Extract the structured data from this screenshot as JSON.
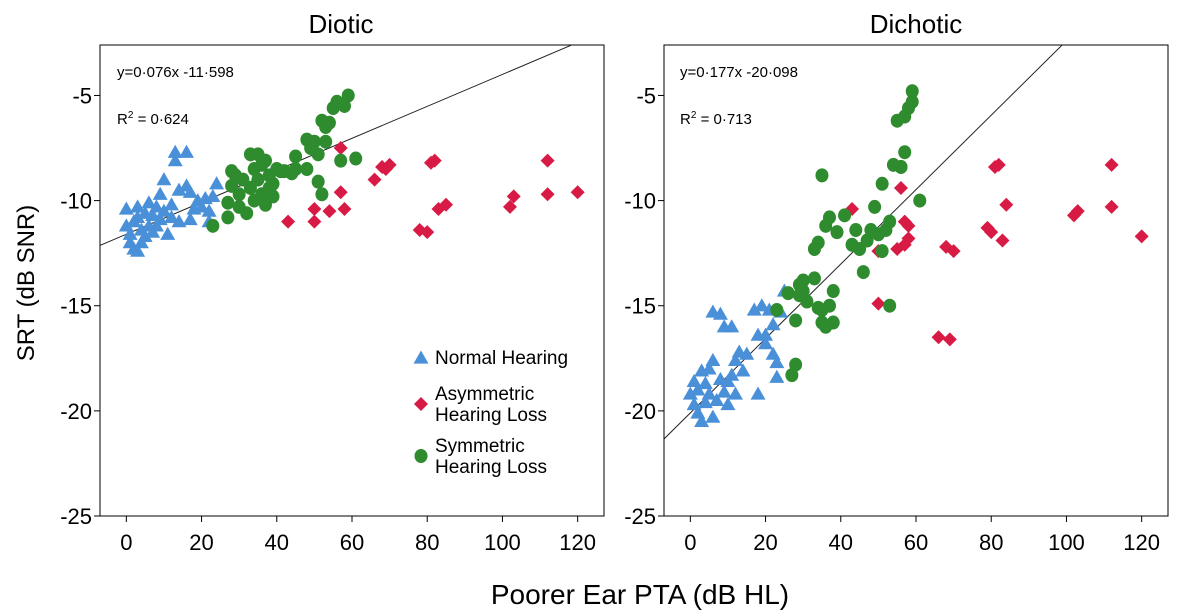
{
  "figure": {
    "ylabel": "SRT (dB SNR)",
    "xlabel": "Poorer Ear PTA (dB HL)"
  },
  "legend": [
    {
      "label_lines": [
        "Normal Hearing"
      ],
      "marker": "triangle",
      "color": "#4a90d9"
    },
    {
      "label_lines": [
        "Asymmetric",
        "Hearing Loss"
      ],
      "marker": "diamond",
      "color": "#d81b45"
    },
    {
      "label_lines": [
        "Symmetric",
        "Hearing Loss"
      ],
      "marker": "circle",
      "color": "#2e8b2e"
    }
  ],
  "chart_data": [
    {
      "type": "scatter",
      "title": "Diotic",
      "equation": "y=0·076x -11·598",
      "r2_prefix": "R",
      "r2_sup": "2",
      "r2_value": " = 0·624",
      "fit": {
        "slope": 0.076,
        "intercept": -11.598
      },
      "xlim": [
        -7,
        127
      ],
      "ylim": [
        -25,
        -2.6
      ],
      "xticks": [
        0,
        20,
        40,
        60,
        80,
        100,
        120
      ],
      "yticks": [
        -5,
        -10,
        -15,
        -20,
        -25
      ],
      "legend_position": "lower-right",
      "series": [
        {
          "name": "Normal Hearing",
          "marker": "triangle",
          "color": "#4a90d9",
          "points": [
            [
              0,
              -10.4
            ],
            [
              0,
              -11.2
            ],
            [
              1,
              -11.6
            ],
            [
              1,
              -12
            ],
            [
              2,
              -12.3
            ],
            [
              2,
              -11
            ],
            [
              3,
              -12.4
            ],
            [
              3,
              -10.8
            ],
            [
              3,
              -10.3
            ],
            [
              4,
              -11.4
            ],
            [
              4,
              -12
            ],
            [
              5,
              -11.7
            ],
            [
              5,
              -10.6
            ],
            [
              6,
              -11.2
            ],
            [
              6,
              -10.1
            ],
            [
              7,
              -11.5
            ],
            [
              7,
              -10.7
            ],
            [
              8,
              -10.3
            ],
            [
              8,
              -11.2
            ],
            [
              9,
              -9.7
            ],
            [
              9,
              -10.9
            ],
            [
              10,
              -9
            ],
            [
              10,
              -10.5
            ],
            [
              11,
              -11.6
            ],
            [
              12,
              -10.2
            ],
            [
              12,
              -10.8
            ],
            [
              13,
              -7.7
            ],
            [
              13,
              -8.1
            ],
            [
              14,
              -11
            ],
            [
              14,
              -9.5
            ],
            [
              16,
              -9.3
            ],
            [
              16,
              -7.7
            ],
            [
              17,
              -9.6
            ],
            [
              17,
              -10.9
            ],
            [
              18,
              -10.4
            ],
            [
              19,
              -10
            ],
            [
              20,
              -10.3
            ],
            [
              21,
              -9.9
            ],
            [
              22,
              -11
            ],
            [
              22,
              -10.5
            ],
            [
              23,
              -9.8
            ],
            [
              24,
              -9.2
            ]
          ]
        },
        {
          "name": "Asymmetric Hearing Loss",
          "marker": "diamond",
          "color": "#d81b45",
          "points": [
            [
              43,
              -11
            ],
            [
              50,
              -10.4
            ],
            [
              50,
              -11
            ],
            [
              54,
              -10.5
            ],
            [
              57,
              -7.5
            ],
            [
              57,
              -9.6
            ],
            [
              58,
              -10.4
            ],
            [
              66,
              -9
            ],
            [
              68,
              -8.4
            ],
            [
              69,
              -8.5
            ],
            [
              70,
              -8.3
            ],
            [
              78,
              -11.4
            ],
            [
              80,
              -11.5
            ],
            [
              81,
              -8.2
            ],
            [
              82,
              -8.1
            ],
            [
              83,
              -10.4
            ],
            [
              85,
              -10.2
            ],
            [
              102,
              -10.3
            ],
            [
              103,
              -9.8
            ],
            [
              112,
              -8.1
            ],
            [
              112,
              -9.7
            ],
            [
              120,
              -9.6
            ]
          ]
        },
        {
          "name": "Symmetric Hearing Loss",
          "marker": "circle",
          "color": "#2e8b2e",
          "points": [
            [
              23,
              -11.2
            ],
            [
              27,
              -10.1
            ],
            [
              27,
              -10.8
            ],
            [
              28,
              -8.6
            ],
            [
              28,
              -9.3
            ],
            [
              29,
              -8.8
            ],
            [
              30,
              -10.3
            ],
            [
              30,
              -9.7
            ],
            [
              31,
              -9
            ],
            [
              32,
              -10.6
            ],
            [
              33,
              -9.4
            ],
            [
              33,
              -7.8
            ],
            [
              34,
              -8.5
            ],
            [
              34,
              -10
            ],
            [
              35,
              -9
            ],
            [
              35,
              -7.8
            ],
            [
              36,
              -9.7
            ],
            [
              36,
              -8.3
            ],
            [
              37,
              -10.2
            ],
            [
              37,
              -8.1
            ],
            [
              38,
              -9.4
            ],
            [
              38,
              -8.8
            ],
            [
              39,
              -9.2
            ],
            [
              39,
              -9.8
            ],
            [
              40,
              -8.5
            ],
            [
              41,
              -8.6
            ],
            [
              42,
              -8.6
            ],
            [
              44,
              -8.7
            ],
            [
              45,
              -7.9
            ],
            [
              45,
              -8.5
            ],
            [
              48,
              -7.1
            ],
            [
              48,
              -8.5
            ],
            [
              49,
              -7.5
            ],
            [
              50,
              -7.2
            ],
            [
              51,
              -9.1
            ],
            [
              51,
              -7.8
            ],
            [
              52,
              -6.2
            ],
            [
              52,
              -9.7
            ],
            [
              53,
              -6.5
            ],
            [
              53,
              -7.2
            ],
            [
              54,
              -6.3
            ],
            [
              55,
              -5.6
            ],
            [
              56,
              -5.3
            ],
            [
              57,
              -8.1
            ],
            [
              58,
              -5.5
            ],
            [
              59,
              -5
            ],
            [
              61,
              -8
            ]
          ]
        }
      ]
    },
    {
      "type": "scatter",
      "title": "Dichotic",
      "equation": "y=0·177x -20·098",
      "r2_prefix": "R",
      "r2_sup": "2",
      "r2_value": " = 0·713",
      "fit": {
        "slope": 0.177,
        "intercept": -20.098
      },
      "xlim": [
        -7,
        127
      ],
      "ylim": [
        -25,
        -2.6
      ],
      "xticks": [
        0,
        20,
        40,
        60,
        80,
        100,
        120
      ],
      "yticks": [
        -5,
        -10,
        -15,
        -20,
        -25
      ],
      "series": [
        {
          "name": "Normal Hearing",
          "marker": "triangle",
          "color": "#4a90d9",
          "points": [
            [
              0,
              -19.2
            ],
            [
              1,
              -18.6
            ],
            [
              1,
              -19.7
            ],
            [
              2,
              -19
            ],
            [
              2,
              -20.1
            ],
            [
              3,
              -20.5
            ],
            [
              3,
              -18.1
            ],
            [
              4,
              -19.6
            ],
            [
              4,
              -18.7
            ],
            [
              5,
              -18
            ],
            [
              5,
              -19.2
            ],
            [
              6,
              -17.6
            ],
            [
              6,
              -20.3
            ],
            [
              6,
              -15.3
            ],
            [
              7,
              -19.5
            ],
            [
              8,
              -18.5
            ],
            [
              8,
              -15.4
            ],
            [
              9,
              -19.1
            ],
            [
              9,
              -16
            ],
            [
              10,
              -18.6
            ],
            [
              10,
              -19.7
            ],
            [
              11,
              -18.3
            ],
            [
              11,
              -16
            ],
            [
              12,
              -19.2
            ],
            [
              12,
              -17.6
            ],
            [
              13,
              -17.2
            ],
            [
              14,
              -18.1
            ],
            [
              15,
              -17.3
            ],
            [
              17,
              -15.2
            ],
            [
              18,
              -16.4
            ],
            [
              18,
              -19.2
            ],
            [
              19,
              -15
            ],
            [
              20,
              -16.4
            ],
            [
              20,
              -16.8
            ],
            [
              21,
              -15.2
            ],
            [
              22,
              -15.9
            ],
            [
              22,
              -17.3
            ],
            [
              23,
              -17.7
            ],
            [
              23,
              -18.4
            ],
            [
              24,
              -15.3
            ],
            [
              25,
              -14.3
            ]
          ]
        },
        {
          "name": "Asymmetric Hearing Loss",
          "marker": "diamond",
          "color": "#d81b45",
          "points": [
            [
              43,
              -10.4
            ],
            [
              50,
              -14.9
            ],
            [
              50,
              -12.4
            ],
            [
              55,
              -12.3
            ],
            [
              56,
              -9.4
            ],
            [
              57,
              -11
            ],
            [
              57,
              -12.1
            ],
            [
              58,
              -11.8
            ],
            [
              58,
              -11.2
            ],
            [
              66,
              -16.5
            ],
            [
              68,
              -12.2
            ],
            [
              69,
              -16.6
            ],
            [
              70,
              -12.4
            ],
            [
              79,
              -11.3
            ],
            [
              80,
              -11.5
            ],
            [
              81,
              -8.4
            ],
            [
              82,
              -8.3
            ],
            [
              83,
              -11.9
            ],
            [
              84,
              -10.2
            ],
            [
              102,
              -10.7
            ],
            [
              103,
              -10.5
            ],
            [
              112,
              -8.3
            ],
            [
              112,
              -10.3
            ],
            [
              120,
              -11.7
            ]
          ]
        },
        {
          "name": "Symmetric Hearing Loss",
          "marker": "circle",
          "color": "#2e8b2e",
          "points": [
            [
              23,
              -15.2
            ],
            [
              26,
              -14.4
            ],
            [
              27,
              -18.3
            ],
            [
              28,
              -15.7
            ],
            [
              28,
              -17.8
            ],
            [
              29,
              -14.5
            ],
            [
              29,
              -14
            ],
            [
              30,
              -13.8
            ],
            [
              30,
              -14.3
            ],
            [
              31,
              -14.8
            ],
            [
              33,
              -12.3
            ],
            [
              33,
              -13.7
            ],
            [
              34,
              -15.1
            ],
            [
              34,
              -12
            ],
            [
              35,
              -8.8
            ],
            [
              35,
              -15.8
            ],
            [
              35,
              -15.2
            ],
            [
              36,
              -11.2
            ],
            [
              36,
              -16
            ],
            [
              37,
              -10.8
            ],
            [
              37,
              -15
            ],
            [
              38,
              -15.8
            ],
            [
              38,
              -14.3
            ],
            [
              39,
              -11.5
            ],
            [
              41,
              -10.7
            ],
            [
              43,
              -12.1
            ],
            [
              44,
              -11.4
            ],
            [
              45,
              -12.3
            ],
            [
              46,
              -13.4
            ],
            [
              47,
              -11.9
            ],
            [
              48,
              -11.4
            ],
            [
              49,
              -10.3
            ],
            [
              50,
              -11.6
            ],
            [
              51,
              -12.4
            ],
            [
              51,
              -9.2
            ],
            [
              52,
              -11.4
            ],
            [
              53,
              -15
            ],
            [
              53,
              -11
            ],
            [
              54,
              -8.3
            ],
            [
              55,
              -6.2
            ],
            [
              56,
              -8.4
            ],
            [
              56,
              -8.4
            ],
            [
              57,
              -7.7
            ],
            [
              57,
              -6
            ],
            [
              58,
              -5.6
            ],
            [
              59,
              -5.3
            ],
            [
              59,
              -4.8
            ],
            [
              61,
              -10
            ]
          ]
        }
      ]
    }
  ]
}
